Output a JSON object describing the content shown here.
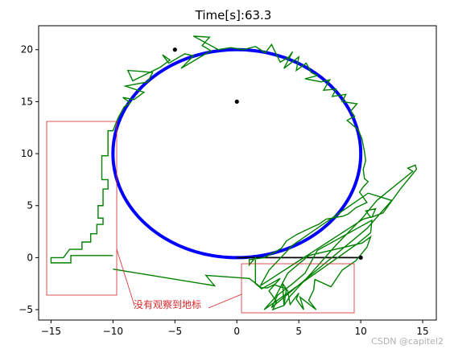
{
  "chart_data": {
    "type": "line",
    "title": "Time[s]:63.3",
    "xlabel": "",
    "ylabel": "",
    "xlim": [
      -16.0,
      16.1
    ],
    "ylim": [
      -6.0,
      22.3
    ],
    "xticks": [
      -15,
      -10,
      -5,
      0,
      5,
      10,
      15
    ],
    "yticks": [
      -5,
      0,
      5,
      10,
      15,
      20
    ],
    "grid": false,
    "circle": {
      "center": [
        0,
        10
      ],
      "radius": 10,
      "color": "#0000ff"
    },
    "landmarks": [
      [
        -5,
        20
      ],
      [
        0,
        15
      ],
      [
        10,
        0
      ]
    ],
    "black_line": [
      [
        0,
        0
      ],
      [
        10,
        0
      ]
    ],
    "green_color": "#008000",
    "green_path": [
      [
        -10,
        0.2
      ],
      [
        -13.4,
        0.2
      ],
      [
        -13.4,
        -0.5
      ],
      [
        -15,
        -0.5
      ],
      [
        -15,
        0
      ],
      [
        -14,
        0
      ],
      [
        -13.5,
        0.8
      ],
      [
        -12.5,
        0.8
      ],
      [
        -12.5,
        1.5
      ],
      [
        -11.8,
        1.5
      ],
      [
        -11.8,
        2.3
      ],
      [
        -11.3,
        2.3
      ],
      [
        -11.3,
        3.2
      ],
      [
        -10.8,
        3.2
      ],
      [
        -10.8,
        3.8
      ],
      [
        -11.2,
        3.8
      ],
      [
        -11.2,
        5.0
      ],
      [
        -10.8,
        5.0
      ],
      [
        -10.8,
        6.6
      ],
      [
        -10.4,
        6.6
      ],
      [
        -10.4,
        7.5
      ],
      [
        -10.9,
        7.5
      ],
      [
        -10.9,
        9.8
      ],
      [
        -10.4,
        9.8
      ],
      [
        -10.4,
        12.2
      ],
      [
        -10.0,
        12.2
      ],
      [
        -9.6,
        13.4
      ],
      [
        -9.1,
        14.5
      ],
      [
        -8.6,
        14.9
      ],
      [
        -9.2,
        15.4
      ],
      [
        -8.3,
        15.2
      ],
      [
        -7.5,
        15.9
      ],
      [
        -9.0,
        16.5
      ],
      [
        -7.2,
        16.9
      ],
      [
        -6.8,
        17.8
      ],
      [
        -7.6,
        17.9
      ],
      [
        -8.8,
        18.0
      ],
      [
        -8.4,
        17.0
      ],
      [
        -6.2,
        18.3
      ],
      [
        -5.4,
        19.0
      ],
      [
        -6.0,
        19.5
      ],
      [
        -5.5,
        18.7
      ],
      [
        -4.2,
        19.6
      ],
      [
        -3.5,
        19.4
      ],
      [
        -4.5,
        18.2
      ],
      [
        -2.1,
        19.9
      ],
      [
        -2.8,
        20.4
      ],
      [
        -2.2,
        21.2
      ],
      [
        -3.5,
        21.3
      ],
      [
        -1.5,
        20.0
      ],
      [
        -0.5,
        20.2
      ],
      [
        0.5,
        20.0
      ],
      [
        1.5,
        20.3
      ],
      [
        2.3,
        19.7
      ],
      [
        2.8,
        20.5
      ],
      [
        3.5,
        18.8
      ],
      [
        4.2,
        19.3
      ],
      [
        4.5,
        19.8
      ],
      [
        3.8,
        18.2
      ],
      [
        5.0,
        19.3
      ],
      [
        4.8,
        18.0
      ],
      [
        5.6,
        18.7
      ],
      [
        6.0,
        17.8
      ],
      [
        6.5,
        17.5
      ],
      [
        5.5,
        17.2
      ],
      [
        6.8,
        16.9
      ],
      [
        7.5,
        17.1
      ],
      [
        7.0,
        16.1
      ],
      [
        8.0,
        16.2
      ],
      [
        7.7,
        15.5
      ],
      [
        8.8,
        15.7
      ],
      [
        8.5,
        15.0
      ],
      [
        9.7,
        14.8
      ],
      [
        9.2,
        14.1
      ],
      [
        9.5,
        13.6
      ],
      [
        8.9,
        13.2
      ],
      [
        9.8,
        12.3
      ],
      [
        10.1,
        11.4
      ],
      [
        10.3,
        10.2
      ],
      [
        10.4,
        9.3
      ],
      [
        10.2,
        8.5
      ],
      [
        10.3,
        7.6
      ],
      [
        10.6,
        7.3
      ],
      [
        10.2,
        6.8
      ],
      [
        9.9,
        6.3
      ],
      [
        10.5,
        5.3
      ],
      [
        9.6,
        4.8
      ],
      [
        9.0,
        4.2
      ],
      [
        8.6,
        4.0
      ],
      [
        7.2,
        3.7
      ],
      [
        6.6,
        3.2
      ],
      [
        6.2,
        3.0
      ],
      [
        5.5,
        2.6
      ],
      [
        4.8,
        2.2
      ],
      [
        4.0,
        1.6
      ],
      [
        3.6,
        0.9
      ],
      [
        2.7,
        0.3
      ],
      [
        2.2,
        0
      ],
      [
        1.0,
        -0.2
      ],
      [
        1.0,
        -0.7
      ],
      [
        1.5,
        0
      ],
      [
        1.5,
        -2.5
      ],
      [
        2.0,
        -3.0
      ],
      [
        3.5,
        -2.0
      ],
      [
        2.6,
        -3.2
      ],
      [
        3.2,
        -4.2
      ],
      [
        2.9,
        -5.0
      ],
      [
        3.8,
        -4.6
      ],
      [
        3.7,
        -2.5
      ],
      [
        4.1,
        -3.2
      ],
      [
        4.3,
        -4.5
      ],
      [
        5.0,
        -3.4
      ],
      [
        4.8,
        -4.0
      ],
      [
        5.4,
        -5.0
      ],
      [
        5.1,
        -3.8
      ],
      [
        6.4,
        -5.0
      ],
      [
        5.8,
        -4.1
      ],
      [
        6.2,
        -3.1
      ],
      [
        6.3,
        -2.1
      ],
      [
        7.6,
        -2.8
      ],
      [
        8.5,
        -1.2
      ],
      [
        9.6,
        -0.3
      ],
      [
        10.5,
        1.0
      ],
      [
        10.8,
        2.0
      ],
      [
        10.1,
        1.4
      ],
      [
        5.8,
        0.2
      ],
      [
        4.1,
        -1.5
      ],
      [
        3.1,
        -3.8
      ],
      [
        2.2,
        -5.0
      ],
      [
        9.8,
        1.4
      ],
      [
        10.8,
        2.4
      ],
      [
        10.9,
        3.6
      ],
      [
        6.5,
        0.7
      ],
      [
        5.5,
        -1.5
      ],
      [
        4.4,
        -2.6
      ],
      [
        3.3,
        -3.6
      ],
      [
        2.8,
        -4.8
      ],
      [
        10.5,
        2.8
      ],
      [
        12.5,
        5.5
      ],
      [
        10.6,
        6.2
      ],
      [
        4.5,
        1.2
      ],
      [
        2.6,
        -1.2
      ],
      [
        1.9,
        -2.7
      ],
      [
        10.2,
        3.7
      ],
      [
        10.8,
        3.9
      ],
      [
        10.4,
        4.5
      ],
      [
        11.2,
        4.7
      ],
      [
        10.9,
        3.9
      ],
      [
        11.8,
        4.3
      ],
      [
        13.2,
        6.6
      ],
      [
        14.5,
        8.5
      ],
      [
        14.4,
        8.9
      ],
      [
        13.8,
        8.6
      ],
      [
        14.2,
        8.3
      ],
      [
        11.3,
        5.5
      ],
      [
        10.2,
        3.9
      ],
      [
        8.0,
        1.2
      ],
      [
        6.0,
        -1.5
      ],
      [
        4.3,
        -3.7
      ],
      [
        3.8,
        -4.6
      ],
      [
        4.0,
        -3.0
      ],
      [
        3.0,
        -2.6
      ],
      [
        2.5,
        -2.9
      ],
      [
        2.0,
        -2.9
      ],
      [
        1.0,
        -2.0
      ],
      [
        -2.5,
        -1.7
      ],
      [
        -1.8,
        -2.7
      ],
      [
        -10.0,
        -1.1
      ]
    ],
    "annotations": [
      {
        "text": "没有观察到地标",
        "color": "#d62728"
      }
    ]
  },
  "watermark": "CSDN @capitel2"
}
